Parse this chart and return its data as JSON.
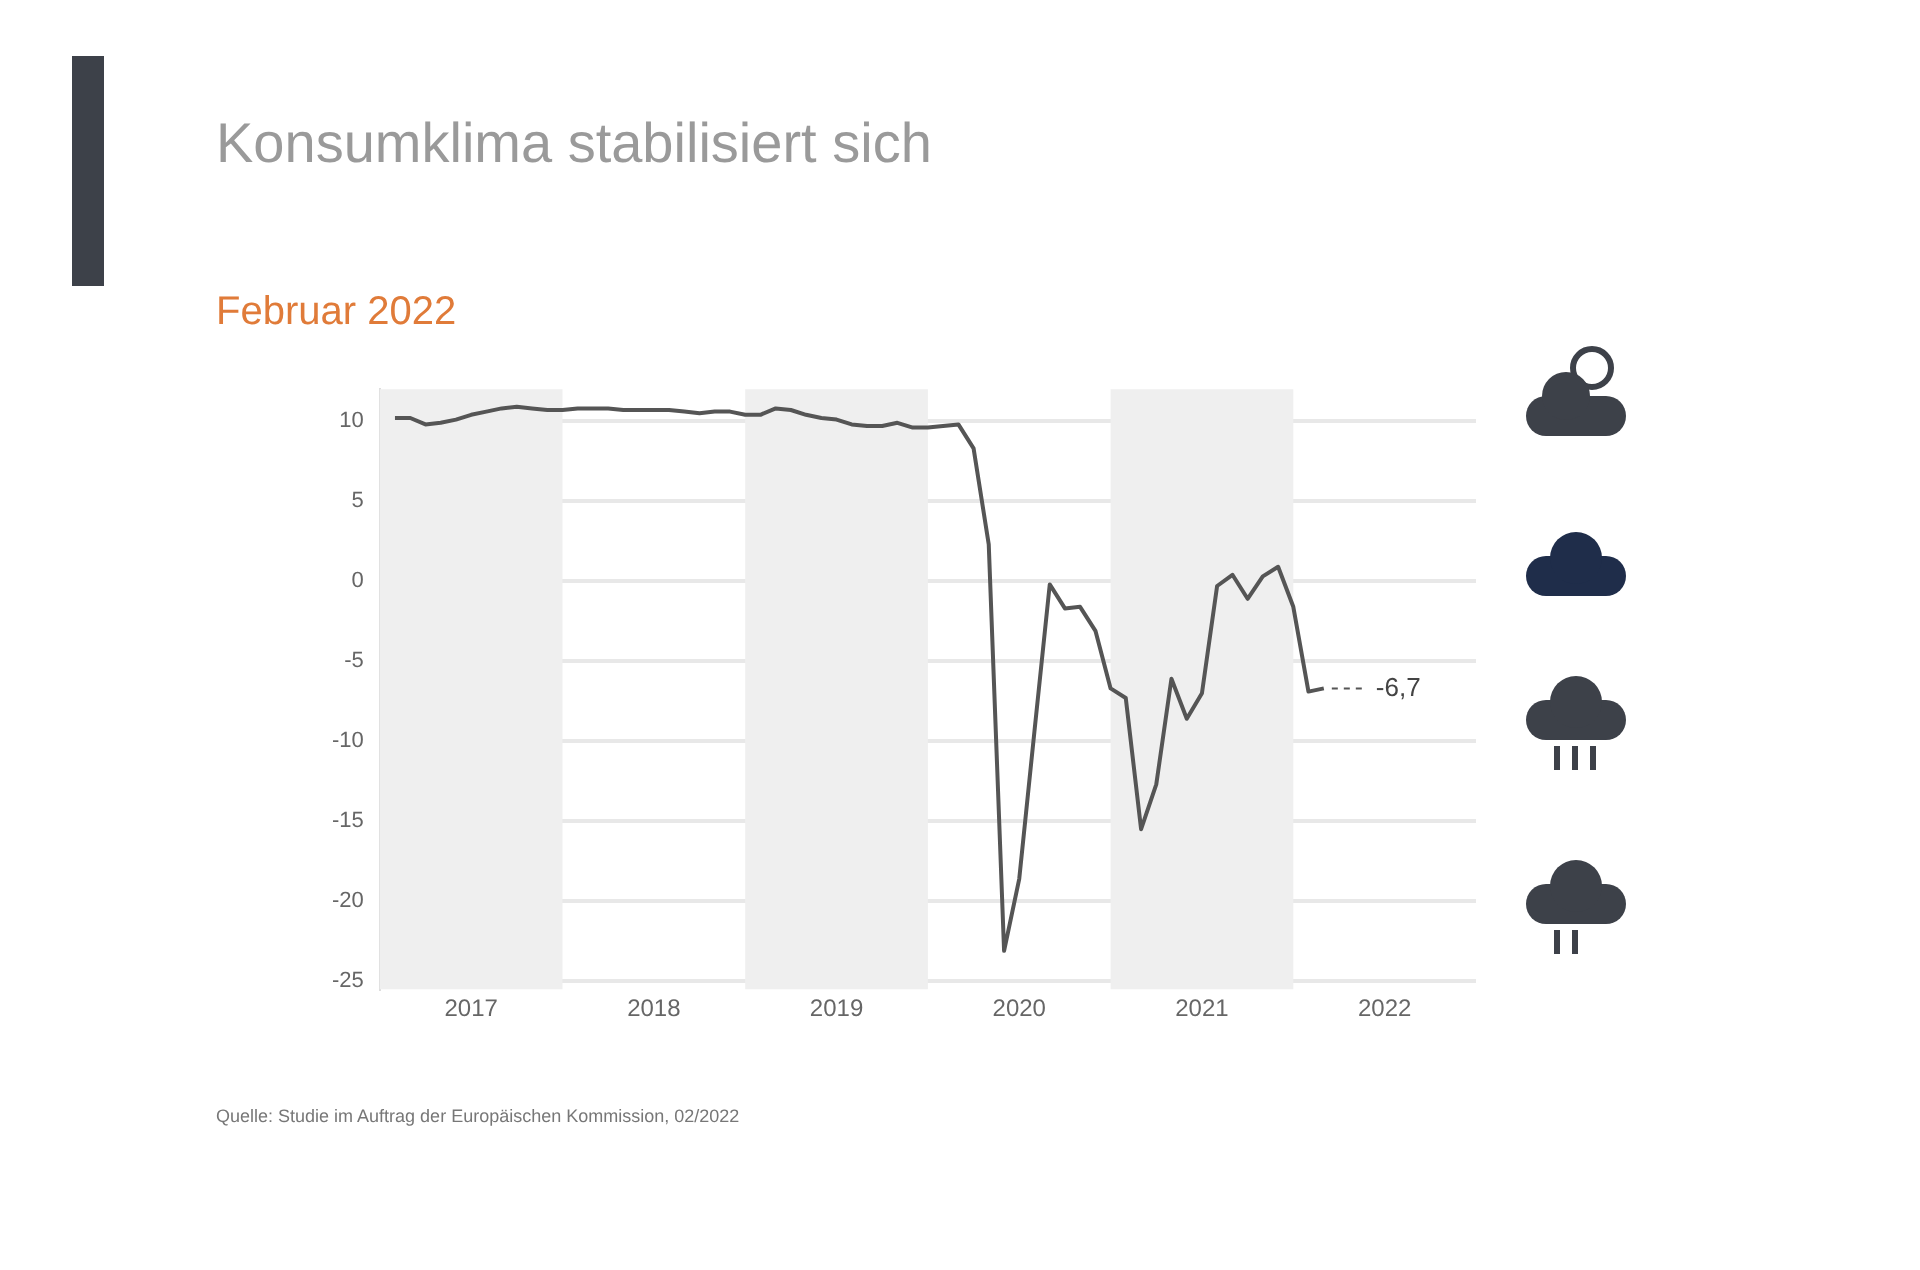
{
  "chart_data": {
    "type": "line",
    "title": "Konsumklima stabilisiert sich",
    "subtitle": "Februar 2022",
    "x": [
      2017.083,
      2017.167,
      2017.25,
      2017.333,
      2017.417,
      2017.5,
      2017.583,
      2017.667,
      2017.75,
      2017.833,
      2017.917,
      2018.0,
      2018.083,
      2018.167,
      2018.25,
      2018.333,
      2018.417,
      2018.5,
      2018.583,
      2018.667,
      2018.75,
      2018.833,
      2018.917,
      2019.0,
      2019.083,
      2019.167,
      2019.25,
      2019.333,
      2019.417,
      2019.5,
      2019.583,
      2019.667,
      2019.75,
      2019.833,
      2019.917,
      2020.0,
      2020.083,
      2020.167,
      2020.25,
      2020.333,
      2020.417,
      2020.5,
      2020.583,
      2020.667,
      2020.75,
      2020.833,
      2020.917,
      2021.0,
      2021.083,
      2021.167,
      2021.25,
      2021.333,
      2021.417,
      2021.5,
      2021.583,
      2021.667,
      2021.75,
      2021.833,
      2021.917,
      2022.0,
      2022.083,
      2022.167
    ],
    "series": [
      {
        "color": "#555555",
        "values": [
          10.2,
          10.2,
          9.8,
          9.9,
          10.1,
          10.4,
          10.6,
          10.8,
          10.9,
          10.8,
          10.7,
          10.7,
          10.8,
          10.8,
          10.8,
          10.7,
          10.7,
          10.7,
          10.7,
          10.6,
          10.5,
          10.6,
          10.6,
          10.4,
          10.4,
          10.8,
          10.7,
          10.4,
          10.2,
          10.1,
          9.8,
          9.7,
          9.7,
          9.9,
          9.6,
          9.6,
          9.7,
          9.8,
          8.3,
          2.3,
          -23.1,
          -18.6,
          -9.4,
          -0.2,
          -1.7,
          -1.6,
          -3.1,
          -6.7,
          -7.3,
          -15.5,
          -12.7,
          -6.1,
          -8.6,
          -7.0,
          -0.3,
          0.4,
          -1.1,
          0.3,
          0.9,
          -1.6,
          -6.9,
          -6.7
        ]
      }
    ],
    "xlim": [
      2017,
      2023
    ],
    "xticks": [
      {
        "value": 2017.5,
        "label": "2017"
      },
      {
        "value": 2018.5,
        "label": "2018"
      },
      {
        "value": 2019.5,
        "label": "2019"
      },
      {
        "value": 2020.5,
        "label": "2020"
      },
      {
        "value": 2021.5,
        "label": "2021"
      },
      {
        "value": 2022.5,
        "label": "2022"
      }
    ],
    "ylim": [
      -25.5,
      12
    ],
    "yticks": [
      -25,
      -20,
      -15,
      -10,
      -5,
      0,
      5,
      10
    ],
    "grid": "y",
    "legend": false,
    "marker": "none",
    "line_style": "solid",
    "bands": [
      {
        "axis": "x",
        "from": 2017,
        "to": 2018,
        "color": "#efefef"
      },
      {
        "axis": "x",
        "from": 2019,
        "to": 2020,
        "color": "#efefef"
      },
      {
        "axis": "x",
        "from": 2021,
        "to": 2022,
        "color": "#efefef"
      }
    ],
    "annotations": [
      {
        "text": "-6,7",
        "x": 2022.167,
        "y": -6.7
      },
      "Quelle: Studie im Auftrag der Europäischen Kommission, 02/2022"
    ]
  }
}
